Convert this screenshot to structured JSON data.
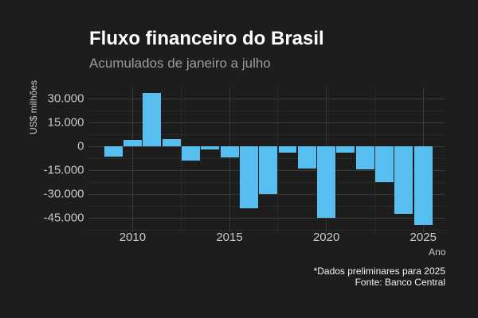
{
  "figure": {
    "background_color": "#1d1d1d",
    "title": "Fluxo financeiro do Brasil",
    "subtitle": "Acumulados de janeiro a julho",
    "caption_line1": "*Dados preliminares para 2025",
    "caption_line2": "Fonte: Banco Central"
  },
  "chart_data": {
    "type": "bar",
    "title": "Fluxo financeiro do Brasil",
    "subtitle": "Acumulados de janeiro a julho",
    "xlabel": "Ano",
    "ylabel": "US$ milhões",
    "caption": [
      "*Dados preliminares para 2025",
      "Fonte: Banco Central"
    ],
    "x": [
      2009,
      2010,
      2011,
      2012,
      2013,
      2014,
      2015,
      2016,
      2017,
      2018,
      2019,
      2020,
      2021,
      2022,
      2023,
      2024,
      2025
    ],
    "values": [
      -6300,
      4000,
      33500,
      4500,
      -8700,
      -2000,
      -7000,
      -38900,
      -29900,
      -3900,
      -13700,
      -45000,
      -4000,
      -14500,
      -22400,
      -42700,
      -49500
    ],
    "bar_color": "#57bff0",
    "bar_width_x_units": 0.945,
    "xlim": [
      2007.7,
      2026.08
    ],
    "ylim": [
      -53730,
      37480
    ],
    "x_major_ticks": [
      {
        "v": 2010,
        "label": "2010"
      },
      {
        "v": 2015,
        "label": "2015"
      },
      {
        "v": 2020,
        "label": "2020"
      },
      {
        "v": 2025,
        "label": "2025"
      }
    ],
    "x_minor_ticks": [
      2012.5,
      2017.5,
      2022.5
    ],
    "y_major_ticks": [
      {
        "v": 30000,
        "label": "30.000"
      },
      {
        "v": 15000,
        "label": "15.000"
      },
      {
        "v": 0,
        "label": "0"
      },
      {
        "v": -15000,
        "label": "-15.000"
      },
      {
        "v": -30000,
        "label": "-30.000"
      },
      {
        "v": -45000,
        "label": "-45.000"
      }
    ],
    "y_minor_ticks": [
      37500,
      22500,
      7500,
      -7500,
      -22500,
      -37500,
      -52500
    ],
    "grid": true,
    "legend": false
  }
}
